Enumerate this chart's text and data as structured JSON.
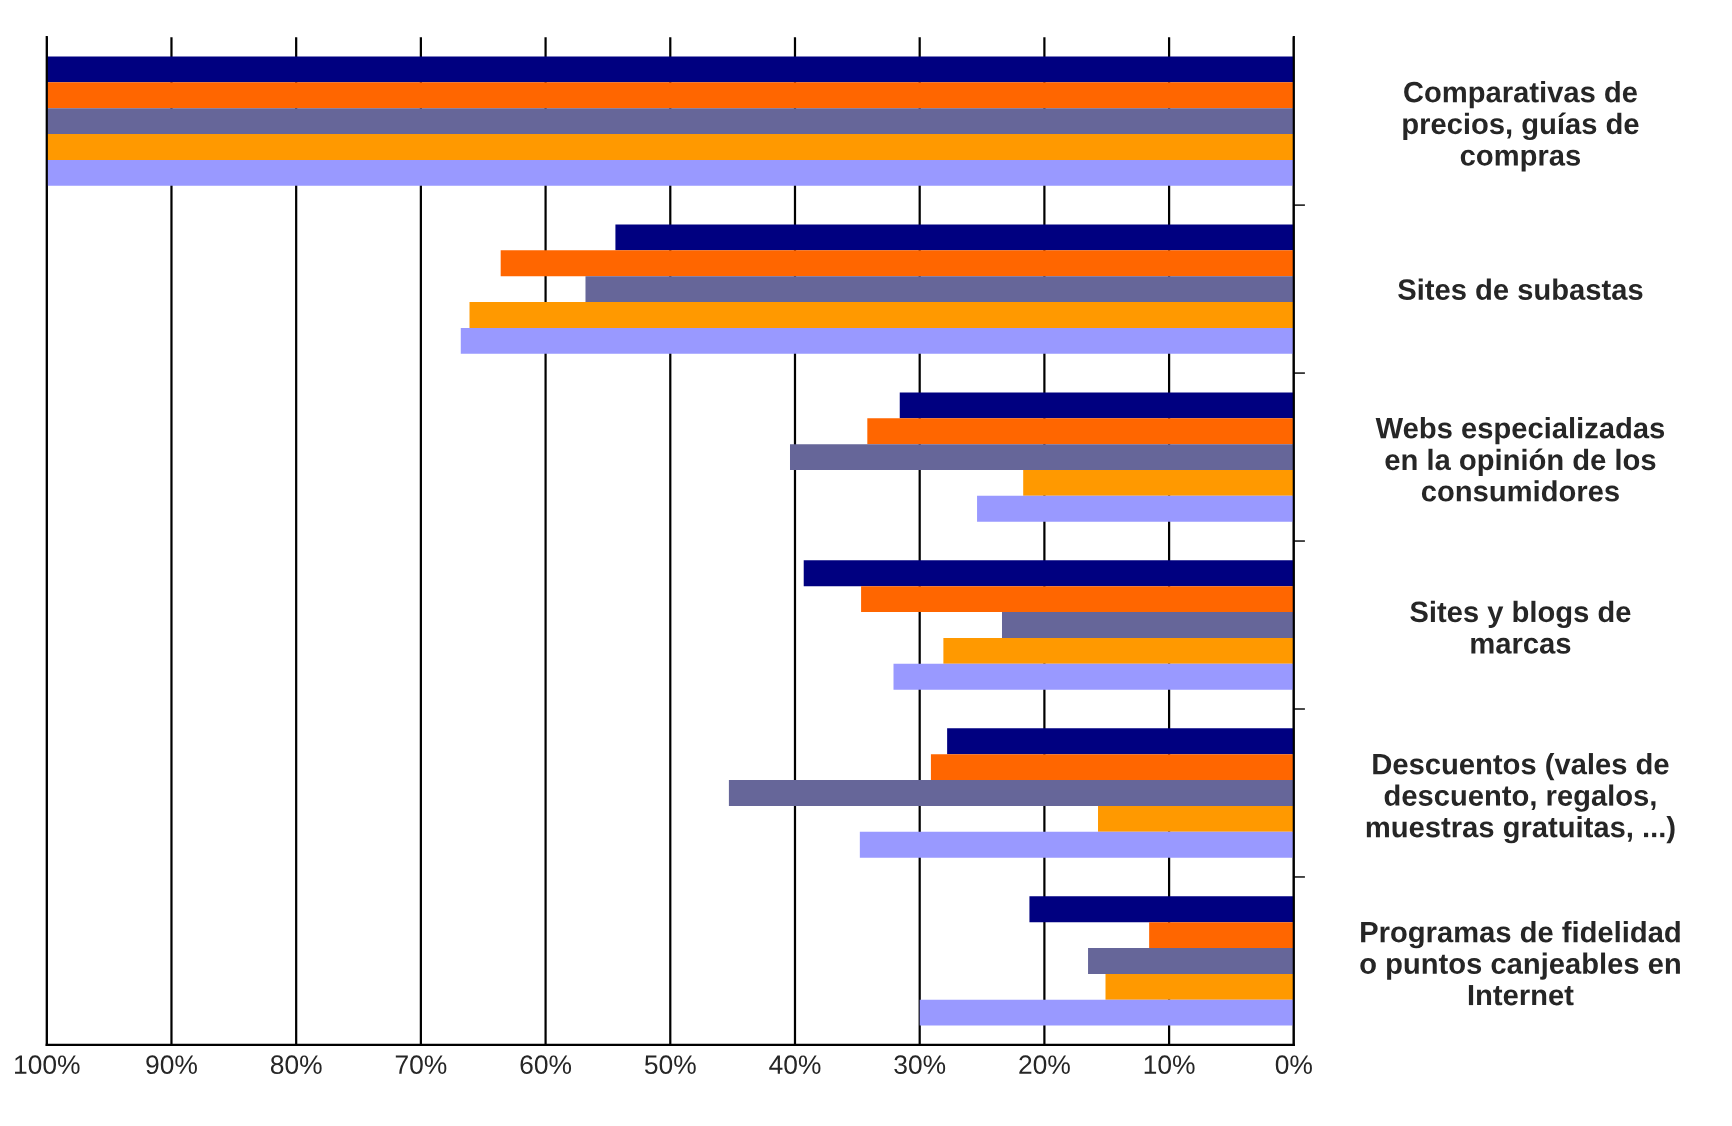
{
  "chart_data": {
    "type": "bar",
    "orientation": "horizontal",
    "categories": [
      "Comparativas de\nprecios, guías de\ncompras",
      "Sites de subastas",
      "Webs especializadas\nen la opinión de los\nconsumidores",
      "Sites y blogs de\nmarcas",
      "Descuentos (vales de\ndescuento, regalos,\nmuestras gratuitas, ...)",
      "Programas de fidelidad\no puntos canjeables en\nInternet"
    ],
    "series": [
      {
        "color": "#000080",
        "values": [
          100,
          54.4,
          31.6,
          39.3,
          27.8,
          21.2
        ]
      },
      {
        "color": "#ff6600",
        "values": [
          100,
          63.6,
          34.2,
          34.7,
          29.1,
          11.6
        ]
      },
      {
        "color": "#666699",
        "values": [
          100,
          56.8,
          40.4,
          23.4,
          45.3,
          16.5
        ]
      },
      {
        "color": "#ff9900",
        "values": [
          100,
          66.1,
          21.7,
          28.1,
          15.7,
          15.1
        ]
      },
      {
        "color": "#9999ff",
        "values": [
          100,
          66.8,
          25.4,
          32.1,
          34.8,
          30.0
        ]
      }
    ],
    "xlim": [
      100,
      0
    ],
    "xticks": [
      {
        "value": 100,
        "label": "100%"
      },
      {
        "value": 90,
        "label": "90%"
      },
      {
        "value": 80,
        "label": "80%"
      },
      {
        "value": 70,
        "label": "70%"
      },
      {
        "value": 60,
        "label": "60%"
      },
      {
        "value": 50,
        "label": "50%"
      },
      {
        "value": 40,
        "label": "40%"
      },
      {
        "value": 30,
        "label": "30%"
      },
      {
        "value": 20,
        "label": "20%"
      },
      {
        "value": 10,
        "label": "10%"
      },
      {
        "value": 0,
        "label": "0%"
      }
    ],
    "grid": "x",
    "legend": false
  }
}
